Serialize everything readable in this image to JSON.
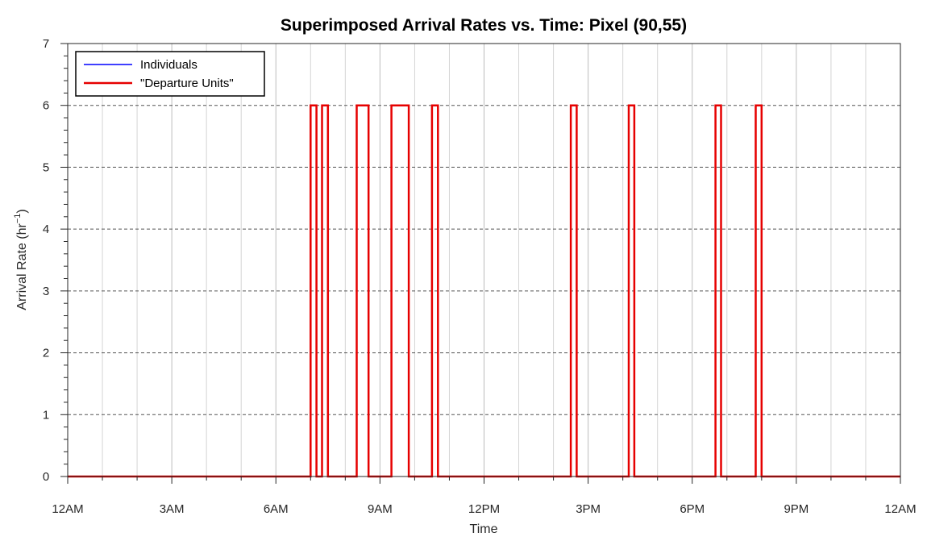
{
  "chart_data": {
    "type": "line",
    "title": "Superimposed Arrival Rates vs. Time: Pixel (90,55)",
    "xlabel": "Time",
    "ylabel": "Arrival Rate (hr",
    "ylabel_sup": "−1",
    "ylabel_close": ")",
    "x_unit": "hours since 12AM",
    "xlim": [
      0,
      24
    ],
    "ylim": [
      0,
      7
    ],
    "xticks": [
      0,
      3,
      6,
      9,
      12,
      15,
      18,
      21,
      24
    ],
    "xtick_labels": [
      "12AM",
      "3AM",
      "6AM",
      "9AM",
      "12PM",
      "3PM",
      "6PM",
      "9PM",
      "12AM"
    ],
    "yticks": [
      0,
      1,
      2,
      3,
      4,
      5,
      6,
      7
    ],
    "ytick_labels": [
      "0",
      "1",
      "2",
      "3",
      "4",
      "5",
      "6",
      "7"
    ],
    "x_minor_grid_step_hours": 1,
    "grid": true,
    "legend_position": "top-left",
    "series": [
      {
        "name": "Individuals",
        "color": "#0000ff",
        "x": [
          0,
          7.0,
          7.0,
          7.17,
          7.17,
          7.33,
          7.33,
          7.5,
          7.5,
          8.33,
          8.33,
          8.67,
          8.67,
          9.33,
          9.33,
          9.83,
          9.83,
          10.5,
          10.5,
          10.67,
          10.67,
          14.5,
          14.5,
          14.67,
          14.67,
          16.17,
          16.17,
          16.33,
          16.33,
          18.67,
          18.67,
          18.83,
          18.83,
          19.83,
          19.83,
          20.0,
          20.0,
          24
        ],
        "y": [
          0,
          0,
          6,
          6,
          0,
          0,
          6,
          6,
          0,
          0,
          6,
          6,
          0,
          0,
          6,
          6,
          0,
          0,
          6,
          6,
          0,
          0,
          6,
          6,
          0,
          0,
          6,
          6,
          0,
          0,
          6,
          6,
          0,
          0,
          6,
          6,
          0,
          0
        ]
      },
      {
        "name": "\"Departure Units\"",
        "color": "#e60000",
        "x": [
          0,
          7.0,
          7.0,
          7.17,
          7.17,
          7.33,
          7.33,
          7.5,
          7.5,
          8.33,
          8.33,
          8.67,
          8.67,
          9.33,
          9.33,
          9.83,
          9.83,
          10.5,
          10.5,
          10.67,
          10.67,
          14.5,
          14.5,
          14.67,
          14.67,
          16.17,
          16.17,
          16.33,
          16.33,
          18.67,
          18.67,
          18.83,
          18.83,
          19.83,
          19.83,
          20.0,
          20.0,
          24
        ],
        "y": [
          0,
          0,
          6,
          6,
          0,
          0,
          6,
          6,
          0,
          0,
          6,
          6,
          0,
          0,
          6,
          6,
          0,
          0,
          6,
          6,
          0,
          0,
          6,
          6,
          0,
          0,
          6,
          6,
          0,
          0,
          6,
          6,
          0,
          0,
          6,
          6,
          0,
          0
        ]
      }
    ]
  }
}
